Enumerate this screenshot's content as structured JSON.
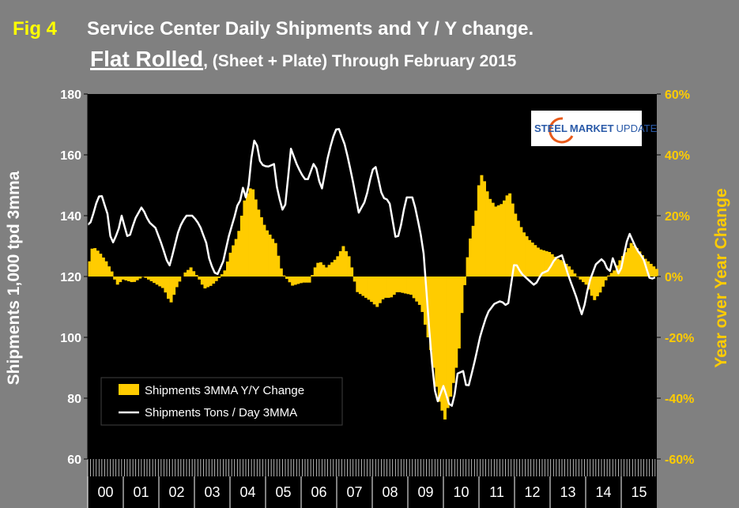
{
  "header": {
    "fig": "Fig 4",
    "line1": "Service Center Daily Shipments and Y / Y change.",
    "line2_main": "Flat Rolled",
    "line2_rest": ", (Sheet + Plate) Through February 2015"
  },
  "logo": {
    "brand1": "STEEL",
    "brand2": "MARKET",
    "brand3": "UPDATE"
  },
  "colors": {
    "bars": "#FFCC00",
    "line": "#FFFFFF",
    "plot_bg": "#000000",
    "page_bg": "#808080",
    "right_axis": "#FFCC00"
  },
  "chart_data": {
    "type": "bar+line",
    "title": "Service Center Daily Shipments and Y / Y change. Flat Rolled, (Sheet + Plate) Through February 2015",
    "ylabel_left": "Shipments 1,000 tpd 3mma",
    "ylabel_right": "Year over Year Change",
    "ylim_left": [
      60,
      180
    ],
    "yticks_left": [
      "60",
      "80",
      "100",
      "120",
      "140",
      "160",
      "180"
    ],
    "ylim_right": [
      -60,
      60
    ],
    "yticks_right": [
      "-60%",
      "-40%",
      "-20%",
      "0%",
      "20%",
      "40%",
      "60%"
    ],
    "x_categories": [
      "00",
      "01",
      "02",
      "03",
      "04",
      "05",
      "06",
      "07",
      "08",
      "09",
      "10",
      "11",
      "12",
      "13",
      "14",
      "15"
    ],
    "legend": [
      "Shipments 3MMA Y/Y Change",
      "Shipments Tons / Day 3MMA"
    ],
    "legend_position": "bottom-left",
    "grid": false,
    "series": [
      {
        "name": "Shipments 3MMA Y/Y Change",
        "type": "bar",
        "axis": "right",
        "anchors": [
          [
            2000.0,
            5
          ],
          [
            2000.1,
            10
          ],
          [
            2000.3,
            8
          ],
          [
            2000.5,
            5
          ],
          [
            2000.7,
            1
          ],
          [
            2000.8,
            -3
          ],
          [
            2001.0,
            -1
          ],
          [
            2001.3,
            -2
          ],
          [
            2001.6,
            0
          ],
          [
            2001.9,
            -2
          ],
          [
            2002.2,
            -4
          ],
          [
            2002.4,
            -9
          ],
          [
            2002.6,
            -3
          ],
          [
            2002.8,
            1
          ],
          [
            2003.0,
            3
          ],
          [
            2003.2,
            0
          ],
          [
            2003.4,
            -4
          ],
          [
            2003.6,
            -3
          ],
          [
            2003.8,
            -1
          ],
          [
            2004.0,
            2
          ],
          [
            2004.2,
            9
          ],
          [
            2004.4,
            14
          ],
          [
            2004.6,
            26
          ],
          [
            2004.8,
            30
          ],
          [
            2005.0,
            22
          ],
          [
            2005.2,
            16
          ],
          [
            2005.5,
            11
          ],
          [
            2005.7,
            1
          ],
          [
            2006.0,
            -3
          ],
          [
            2006.3,
            -2
          ],
          [
            2006.5,
            -2
          ],
          [
            2006.7,
            4
          ],
          [
            2006.8,
            5
          ],
          [
            2007.0,
            3
          ],
          [
            2007.3,
            6
          ],
          [
            2007.5,
            10
          ],
          [
            2007.7,
            6
          ],
          [
            2007.8,
            0
          ],
          [
            2007.9,
            -5
          ],
          [
            2008.3,
            -8
          ],
          [
            2008.5,
            -10
          ],
          [
            2008.7,
            -7
          ],
          [
            2008.9,
            -7
          ],
          [
            2009.1,
            -5
          ],
          [
            2009.5,
            -6
          ],
          [
            2009.8,
            -10
          ],
          [
            2010.1,
            -25
          ],
          [
            2010.3,
            -40
          ],
          [
            2010.5,
            -47
          ],
          [
            2010.7,
            -38
          ],
          [
            2010.9,
            -26
          ],
          [
            2011.0,
            -12
          ],
          [
            2011.2,
            10
          ],
          [
            2011.4,
            20
          ],
          [
            2011.5,
            30
          ],
          [
            2011.6,
            34
          ],
          [
            2011.8,
            26
          ],
          [
            2012.0,
            23
          ],
          [
            2012.2,
            24
          ],
          [
            2012.4,
            28
          ],
          [
            2012.6,
            20
          ],
          [
            2012.8,
            15
          ],
          [
            2013.0,
            12
          ],
          [
            2013.3,
            9
          ],
          [
            2013.6,
            8
          ],
          [
            2013.8,
            6
          ],
          [
            2014.0,
            5
          ],
          [
            2014.2,
            3
          ],
          [
            2014.4,
            0
          ],
          [
            2014.7,
            -3
          ],
          [
            2014.9,
            -8
          ],
          [
            2015.1,
            -5
          ],
          [
            2015.3,
            0
          ],
          [
            2015.5,
            2
          ],
          [
            2015.7,
            6
          ],
          [
            2015.9,
            9
          ],
          [
            2016.0,
            11
          ],
          [
            2016.2,
            9
          ],
          [
            2016.4,
            6
          ],
          [
            2016.6,
            4
          ],
          [
            2016.8,
            2
          ]
        ]
      },
      {
        "name": "Shipments Tons / Day 3MMA",
        "type": "line",
        "axis": "left",
        "anchors": [
          [
            2000.0,
            137
          ],
          [
            2000.1,
            138
          ],
          [
            2000.3,
            146
          ],
          [
            2000.4,
            147
          ],
          [
            2000.6,
            140
          ],
          [
            2000.7,
            130
          ],
          [
            2000.9,
            135
          ],
          [
            2001.0,
            140
          ],
          [
            2001.2,
            132
          ],
          [
            2001.4,
            139
          ],
          [
            2001.6,
            143
          ],
          [
            2001.8,
            138
          ],
          [
            2002.0,
            136
          ],
          [
            2002.2,
            130
          ],
          [
            2002.4,
            123
          ],
          [
            2002.5,
            127
          ],
          [
            2002.7,
            136
          ],
          [
            2002.9,
            140
          ],
          [
            2003.1,
            140
          ],
          [
            2003.3,
            137
          ],
          [
            2003.5,
            131
          ],
          [
            2003.6,
            125
          ],
          [
            2003.8,
            120
          ],
          [
            2004.0,
            125
          ],
          [
            2004.2,
            135
          ],
          [
            2004.3,
            138
          ],
          [
            2004.4,
            143
          ],
          [
            2004.5,
            145
          ],
          [
            2004.6,
            150
          ],
          [
            2004.7,
            144
          ],
          [
            2004.8,
            156
          ],
          [
            2004.9,
            165
          ],
          [
            2005.0,
            163
          ],
          [
            2005.1,
            157
          ],
          [
            2005.3,
            156
          ],
          [
            2005.5,
            157
          ],
          [
            2005.6,
            148
          ],
          [
            2005.8,
            140
          ],
          [
            2006.0,
            162
          ],
          [
            2006.2,
            156
          ],
          [
            2006.4,
            152
          ],
          [
            2006.5,
            152
          ],
          [
            2006.7,
            158
          ],
          [
            2006.9,
            148
          ],
          [
            2007.1,
            160
          ],
          [
            2007.3,
            168
          ],
          [
            2007.4,
            169
          ],
          [
            2007.6,
            163
          ],
          [
            2007.8,
            153
          ],
          [
            2008.0,
            141
          ],
          [
            2008.2,
            145
          ],
          [
            2008.4,
            155
          ],
          [
            2008.5,
            156
          ],
          [
            2008.7,
            146
          ],
          [
            2008.9,
            145
          ],
          [
            2009.1,
            132
          ],
          [
            2009.2,
            134
          ],
          [
            2009.4,
            146
          ],
          [
            2009.6,
            146
          ],
          [
            2009.7,
            141
          ],
          [
            2009.9,
            130
          ],
          [
            2010.0,
            115
          ],
          [
            2010.1,
            100
          ],
          [
            2010.2,
            87
          ],
          [
            2010.3,
            78
          ],
          [
            2010.5,
            84
          ],
          [
            2010.7,
            77
          ],
          [
            2010.8,
            78
          ],
          [
            2010.9,
            88
          ],
          [
            2011.1,
            89
          ],
          [
            2011.2,
            82
          ],
          [
            2011.4,
            91
          ],
          [
            2011.6,
            101
          ],
          [
            2011.8,
            108
          ],
          [
            2012.0,
            111
          ],
          [
            2012.2,
            112
          ],
          [
            2012.4,
            110
          ],
          [
            2012.6,
            125
          ],
          [
            2012.8,
            121
          ],
          [
            2013.0,
            119
          ],
          [
            2013.2,
            117
          ],
          [
            2013.4,
            121
          ],
          [
            2013.6,
            122
          ],
          [
            2013.8,
            126
          ],
          [
            2014.0,
            127
          ],
          [
            2014.2,
            120
          ],
          [
            2014.4,
            114
          ],
          [
            2014.6,
            107
          ],
          [
            2014.8,
            118
          ],
          [
            2015.0,
            124
          ],
          [
            2015.2,
            126
          ],
          [
            2015.4,
            121
          ],
          [
            2015.5,
            126
          ],
          [
            2015.7,
            120
          ],
          [
            2015.9,
            131
          ],
          [
            2016.0,
            134
          ],
          [
            2016.2,
            129
          ],
          [
            2016.4,
            126
          ],
          [
            2016.6,
            119
          ],
          [
            2016.8,
            120
          ]
        ]
      }
    ]
  }
}
